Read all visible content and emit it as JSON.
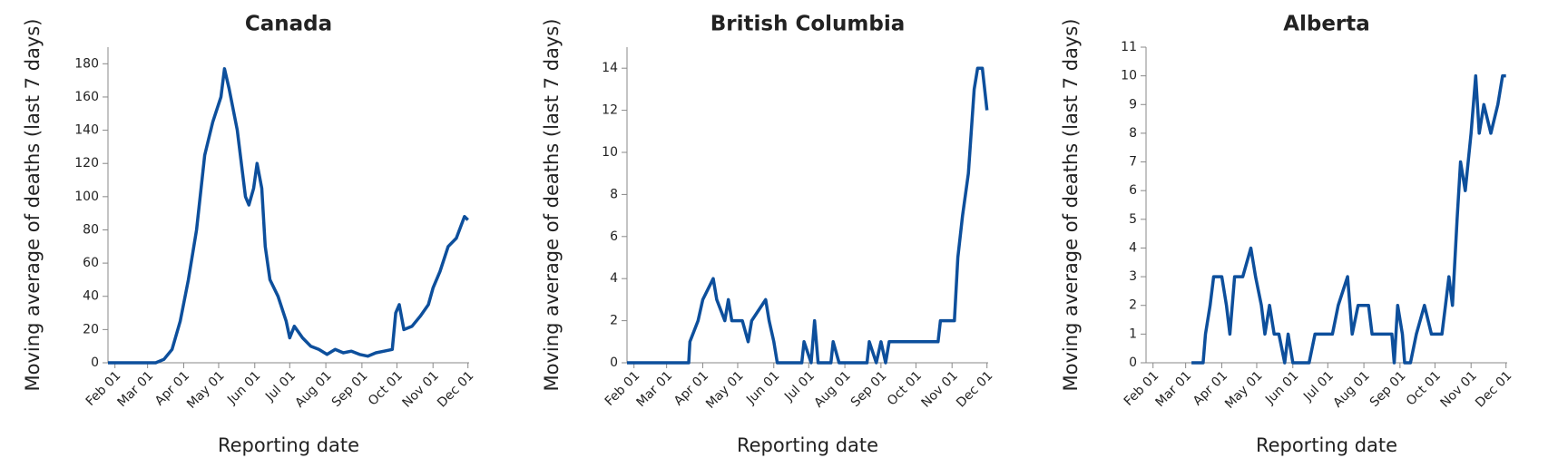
{
  "chart_data": [
    {
      "type": "line",
      "title": "Canada",
      "x_label": "Reporting date",
      "y_label": "Moving average of deaths (last 7 days)",
      "xlim": [
        "01-26",
        "12-02"
      ],
      "xticks": [
        {
          "value": "02-01",
          "label": "Feb 01"
        },
        {
          "value": "03-01",
          "label": "Mar 01"
        },
        {
          "value": "04-01",
          "label": "Apr 01"
        },
        {
          "value": "05-01",
          "label": "May 01"
        },
        {
          "value": "06-01",
          "label": "Jun 01"
        },
        {
          "value": "07-01",
          "label": "Jul 01"
        },
        {
          "value": "08-01",
          "label": "Aug 01"
        },
        {
          "value": "09-01",
          "label": "Sep 01"
        },
        {
          "value": "10-01",
          "label": "Oct 01"
        },
        {
          "value": "11-01",
          "label": "Nov 01"
        },
        {
          "value": "12-01",
          "label": "Dec 01"
        }
      ],
      "ylim": [
        0,
        190
      ],
      "yticks": [
        0,
        20,
        40,
        60,
        80,
        100,
        120,
        140,
        160,
        180
      ],
      "color": "#0d4f9c",
      "x": [
        "01-26",
        "03-08",
        "03-15",
        "03-22",
        "03-29",
        "04-05",
        "04-12",
        "04-19",
        "04-26",
        "05-03",
        "05-06",
        "05-10",
        "05-17",
        "05-24",
        "05-27",
        "05-31",
        "06-03",
        "06-07",
        "06-10",
        "06-14",
        "06-21",
        "06-28",
        "07-01",
        "07-05",
        "07-12",
        "07-19",
        "07-26",
        "08-02",
        "08-09",
        "08-16",
        "08-23",
        "08-30",
        "09-06",
        "09-13",
        "09-20",
        "09-27",
        "09-30",
        "10-03",
        "10-07",
        "10-14",
        "10-21",
        "10-28",
        "11-01",
        "11-07",
        "11-14",
        "11-21",
        "11-28",
        "12-01"
      ],
      "values": [
        0,
        0,
        2,
        8,
        25,
        50,
        80,
        125,
        145,
        160,
        177,
        165,
        140,
        100,
        95,
        105,
        120,
        105,
        70,
        50,
        40,
        25,
        15,
        22,
        15,
        10,
        8,
        5,
        8,
        6,
        7,
        5,
        4,
        6,
        7,
        8,
        30,
        35,
        20,
        22,
        28,
        35,
        45,
        55,
        70,
        75,
        88,
        86
      ]
    },
    {
      "type": "line",
      "title": "British Columbia",
      "x_label": "Reporting date",
      "y_label": "Moving average of deaths (last 7 days)",
      "xlim": [
        "01-26",
        "12-02"
      ],
      "xticks": [
        {
          "value": "02-01",
          "label": "Feb 01"
        },
        {
          "value": "03-01",
          "label": "Mar 01"
        },
        {
          "value": "04-01",
          "label": "Apr 01"
        },
        {
          "value": "05-01",
          "label": "May 01"
        },
        {
          "value": "06-01",
          "label": "Jun 01"
        },
        {
          "value": "07-01",
          "label": "Jul 01"
        },
        {
          "value": "08-01",
          "label": "Aug 01"
        },
        {
          "value": "09-01",
          "label": "Sep 01"
        },
        {
          "value": "10-01",
          "label": "Oct 01"
        },
        {
          "value": "11-01",
          "label": "Nov 01"
        },
        {
          "value": "12-01",
          "label": "Dec 01"
        }
      ],
      "ylim": [
        0,
        15
      ],
      "yticks": [
        0,
        2,
        4,
        6,
        8,
        10,
        12,
        14
      ],
      "color": "#0d4f9c",
      "x": [
        "01-26",
        "03-20",
        "03-21",
        "03-28",
        "04-01",
        "04-10",
        "04-13",
        "04-20",
        "04-23",
        "04-26",
        "05-05",
        "05-10",
        "05-13",
        "05-25",
        "05-28",
        "06-01",
        "06-04",
        "06-25",
        "06-27",
        "07-03",
        "07-06",
        "07-09",
        "07-20",
        "07-22",
        "07-27",
        "08-20",
        "08-22",
        "08-28",
        "09-01",
        "09-05",
        "09-08",
        "10-20",
        "10-22",
        "11-03",
        "11-06",
        "11-10",
        "11-15",
        "11-20",
        "11-23",
        "11-27",
        "12-01"
      ],
      "values": [
        0,
        0,
        1,
        2,
        3,
        4,
        3,
        2,
        3,
        2,
        2,
        1,
        2,
        3,
        2,
        1,
        0,
        0,
        1,
        0,
        2,
        0,
        0,
        1,
        0,
        0,
        1,
        0,
        1,
        0,
        1,
        1,
        2,
        2,
        5,
        7,
        9,
        13,
        14,
        14,
        12
      ]
    },
    {
      "type": "line",
      "title": "Alberta",
      "x_label": "Reporting date",
      "y_label": "Moving average of deaths (last 7 days)",
      "xlim": [
        "01-26",
        "12-02"
      ],
      "xticks": [
        {
          "value": "02-01",
          "label": "Feb 01"
        },
        {
          "value": "03-01",
          "label": "Mar 01"
        },
        {
          "value": "04-01",
          "label": "Apr 01"
        },
        {
          "value": "05-01",
          "label": "May 01"
        },
        {
          "value": "06-01",
          "label": "Jun 01"
        },
        {
          "value": "07-01",
          "label": "Jul 01"
        },
        {
          "value": "08-01",
          "label": "Aug 01"
        },
        {
          "value": "09-01",
          "label": "Sep 01"
        },
        {
          "value": "10-01",
          "label": "Oct 01"
        },
        {
          "value": "11-01",
          "label": "Nov 01"
        },
        {
          "value": "12-01",
          "label": "Dec 01"
        }
      ],
      "ylim": [
        0,
        11
      ],
      "yticks": [
        0,
        1,
        2,
        3,
        4,
        5,
        6,
        7,
        8,
        9,
        10,
        11
      ],
      "color": "#0d4f9c",
      "x": [
        "03-06",
        "03-16",
        "03-18",
        "03-22",
        "03-25",
        "04-01",
        "04-05",
        "04-08",
        "04-12",
        "04-19",
        "04-26",
        "04-30",
        "05-05",
        "05-08",
        "05-12",
        "05-16",
        "05-20",
        "05-25",
        "05-28",
        "06-01",
        "06-15",
        "06-20",
        "07-05",
        "07-10",
        "07-18",
        "07-22",
        "07-27",
        "08-05",
        "08-08",
        "08-25",
        "08-27",
        "08-30",
        "09-03",
        "09-05",
        "09-10",
        "09-15",
        "09-22",
        "09-28",
        "10-07",
        "10-10",
        "10-13",
        "10-16",
        "10-20",
        "10-23",
        "10-27",
        "11-01",
        "11-05",
        "11-08",
        "11-12",
        "11-18",
        "11-24",
        "11-28",
        "12-01"
      ],
      "values": [
        0,
        0,
        1,
        2,
        3,
        3,
        2,
        1,
        3,
        3,
        4,
        3,
        2,
        1,
        2,
        1,
        1,
        0,
        1,
        0,
        0,
        1,
        1,
        2,
        3,
        1,
        2,
        2,
        1,
        1,
        0,
        2,
        1,
        0,
        0,
        1,
        2,
        1,
        1,
        2,
        3,
        2,
        5,
        7,
        6,
        8,
        10,
        8,
        9,
        8,
        9,
        10,
        10
      ]
    }
  ]
}
